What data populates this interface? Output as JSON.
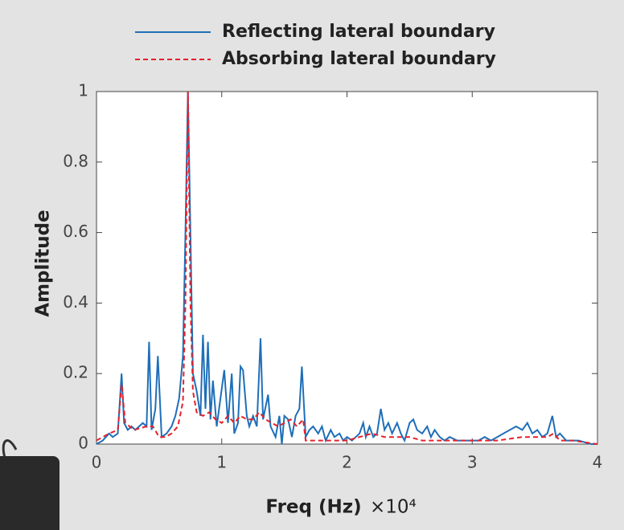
{
  "chart_data": {
    "type": "line",
    "ylabel": "Amplitude",
    "xlabel": "Freq (Hz)",
    "x_exponent_label": "×10⁴",
    "xlim": [
      0,
      4
    ],
    "xticks": [
      0,
      1,
      2,
      3,
      4
    ],
    "ylim": [
      0,
      1
    ],
    "yticks": [
      0,
      0.2,
      0.4,
      0.6,
      0.8,
      1
    ],
    "legend": "top",
    "series": [
      {
        "name": "Reflecting lateral boundary",
        "color": "#1f6fb8",
        "dash": false,
        "x": [
          0,
          0.05,
          0.1,
          0.13,
          0.17,
          0.2,
          0.22,
          0.25,
          0.28,
          0.31,
          0.34,
          0.37,
          0.4,
          0.42,
          0.44,
          0.47,
          0.49,
          0.52,
          0.56,
          0.6,
          0.63,
          0.66,
          0.69,
          0.71,
          0.73,
          0.75,
          0.77,
          0.8,
          0.83,
          0.85,
          0.87,
          0.89,
          0.91,
          0.93,
          0.96,
          0.99,
          1.02,
          1.05,
          1.08,
          1.1,
          1.13,
          1.15,
          1.17,
          1.2,
          1.22,
          1.25,
          1.28,
          1.31,
          1.33,
          1.37,
          1.39,
          1.43,
          1.46,
          1.48,
          1.5,
          1.53,
          1.56,
          1.59,
          1.62,
          1.64,
          1.67,
          1.7,
          1.73,
          1.77,
          1.8,
          1.83,
          1.87,
          1.9,
          1.94,
          1.97,
          2.0,
          2.04,
          2.07,
          2.1,
          2.13,
          2.15,
          2.18,
          2.21,
          2.24,
          2.27,
          2.3,
          2.33,
          2.36,
          2.4,
          2.43,
          2.46,
          2.5,
          2.53,
          2.56,
          2.6,
          2.64,
          2.67,
          2.7,
          2.74,
          2.78,
          2.82,
          2.88,
          2.95,
          3.0,
          3.05,
          3.1,
          3.15,
          3.2,
          3.25,
          3.3,
          3.35,
          3.4,
          3.44,
          3.48,
          3.52,
          3.56,
          3.6,
          3.64,
          3.67,
          3.7,
          3.75,
          3.85,
          3.95,
          4.0
        ],
        "values": [
          0,
          0.01,
          0.03,
          0.02,
          0.03,
          0.2,
          0.06,
          0.04,
          0.05,
          0.04,
          0.05,
          0.06,
          0.05,
          0.29,
          0.04,
          0.1,
          0.25,
          0.02,
          0.03,
          0.05,
          0.08,
          0.13,
          0.25,
          0.6,
          1.0,
          0.6,
          0.2,
          0.15,
          0.08,
          0.31,
          0.1,
          0.29,
          0.07,
          0.18,
          0.05,
          0.13,
          0.21,
          0.06,
          0.2,
          0.03,
          0.06,
          0.22,
          0.21,
          0.08,
          0.05,
          0.08,
          0.05,
          0.3,
          0.07,
          0.14,
          0.05,
          0.02,
          0.08,
          0,
          0.08,
          0.07,
          0.02,
          0.08,
          0.1,
          0.22,
          0.02,
          0.04,
          0.05,
          0.03,
          0.05,
          0.01,
          0.04,
          0.02,
          0.03,
          0.01,
          0.02,
          0.01,
          0.02,
          0.03,
          0.06,
          0.02,
          0.05,
          0.02,
          0.03,
          0.1,
          0.04,
          0.06,
          0.03,
          0.06,
          0.03,
          0.01,
          0.06,
          0.07,
          0.04,
          0.03,
          0.05,
          0.02,
          0.04,
          0.02,
          0.01,
          0.02,
          0.01,
          0.01,
          0.01,
          0.01,
          0.02,
          0.01,
          0.02,
          0.03,
          0.04,
          0.05,
          0.04,
          0.06,
          0.03,
          0.04,
          0.02,
          0.03,
          0.08,
          0.02,
          0.03,
          0.01,
          0.01,
          0,
          0
        ]
      },
      {
        "name": "Absorbing lateral boundary",
        "color": "#e8202a",
        "dash": true,
        "x": [
          0,
          0.1,
          0.17,
          0.2,
          0.23,
          0.3,
          0.4,
          0.45,
          0.5,
          0.55,
          0.6,
          0.65,
          0.69,
          0.71,
          0.73,
          0.75,
          0.77,
          0.8,
          0.85,
          0.9,
          0.95,
          1.0,
          1.05,
          1.1,
          1.15,
          1.2,
          1.25,
          1.3,
          1.35,
          1.4,
          1.45,
          1.5,
          1.55,
          1.6,
          1.65,
          1.67,
          1.7,
          1.8,
          1.9,
          2.0,
          2.1,
          2.2,
          2.3,
          2.4,
          2.5,
          2.6,
          2.7,
          2.8,
          3.0,
          3.2,
          3.4,
          3.6,
          3.65,
          3.7,
          3.8,
          4.0
        ],
        "values": [
          0.01,
          0.03,
          0.04,
          0.17,
          0.06,
          0.04,
          0.05,
          0.05,
          0.02,
          0.02,
          0.03,
          0.05,
          0.12,
          0.4,
          1.0,
          0.4,
          0.15,
          0.09,
          0.08,
          0.09,
          0.07,
          0.06,
          0.08,
          0.06,
          0.08,
          0.07,
          0.07,
          0.09,
          0.07,
          0.06,
          0.05,
          0.06,
          0.07,
          0.05,
          0.07,
          0.01,
          0.01,
          0.01,
          0.01,
          0.01,
          0.02,
          0.03,
          0.02,
          0.02,
          0.02,
          0.01,
          0.01,
          0.01,
          0.01,
          0.01,
          0.02,
          0.02,
          0.03,
          0.01,
          0.01,
          0
        ]
      }
    ]
  }
}
